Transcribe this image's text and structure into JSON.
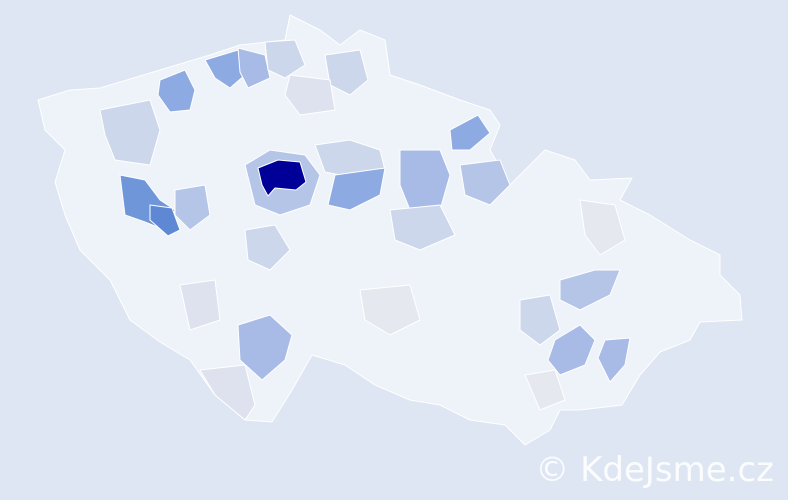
{
  "map": {
    "watermark": "© KdeJsme.cz",
    "colors": {
      "background": "#dde6f2",
      "base": "#eef2f9",
      "highest": "#000099",
      "high": "#6f96d9",
      "medium": "#8eaae2",
      "low": "#b5c5e8",
      "lower": "#cdd7ec",
      "neutral": "#e6e8ef"
    }
  }
}
